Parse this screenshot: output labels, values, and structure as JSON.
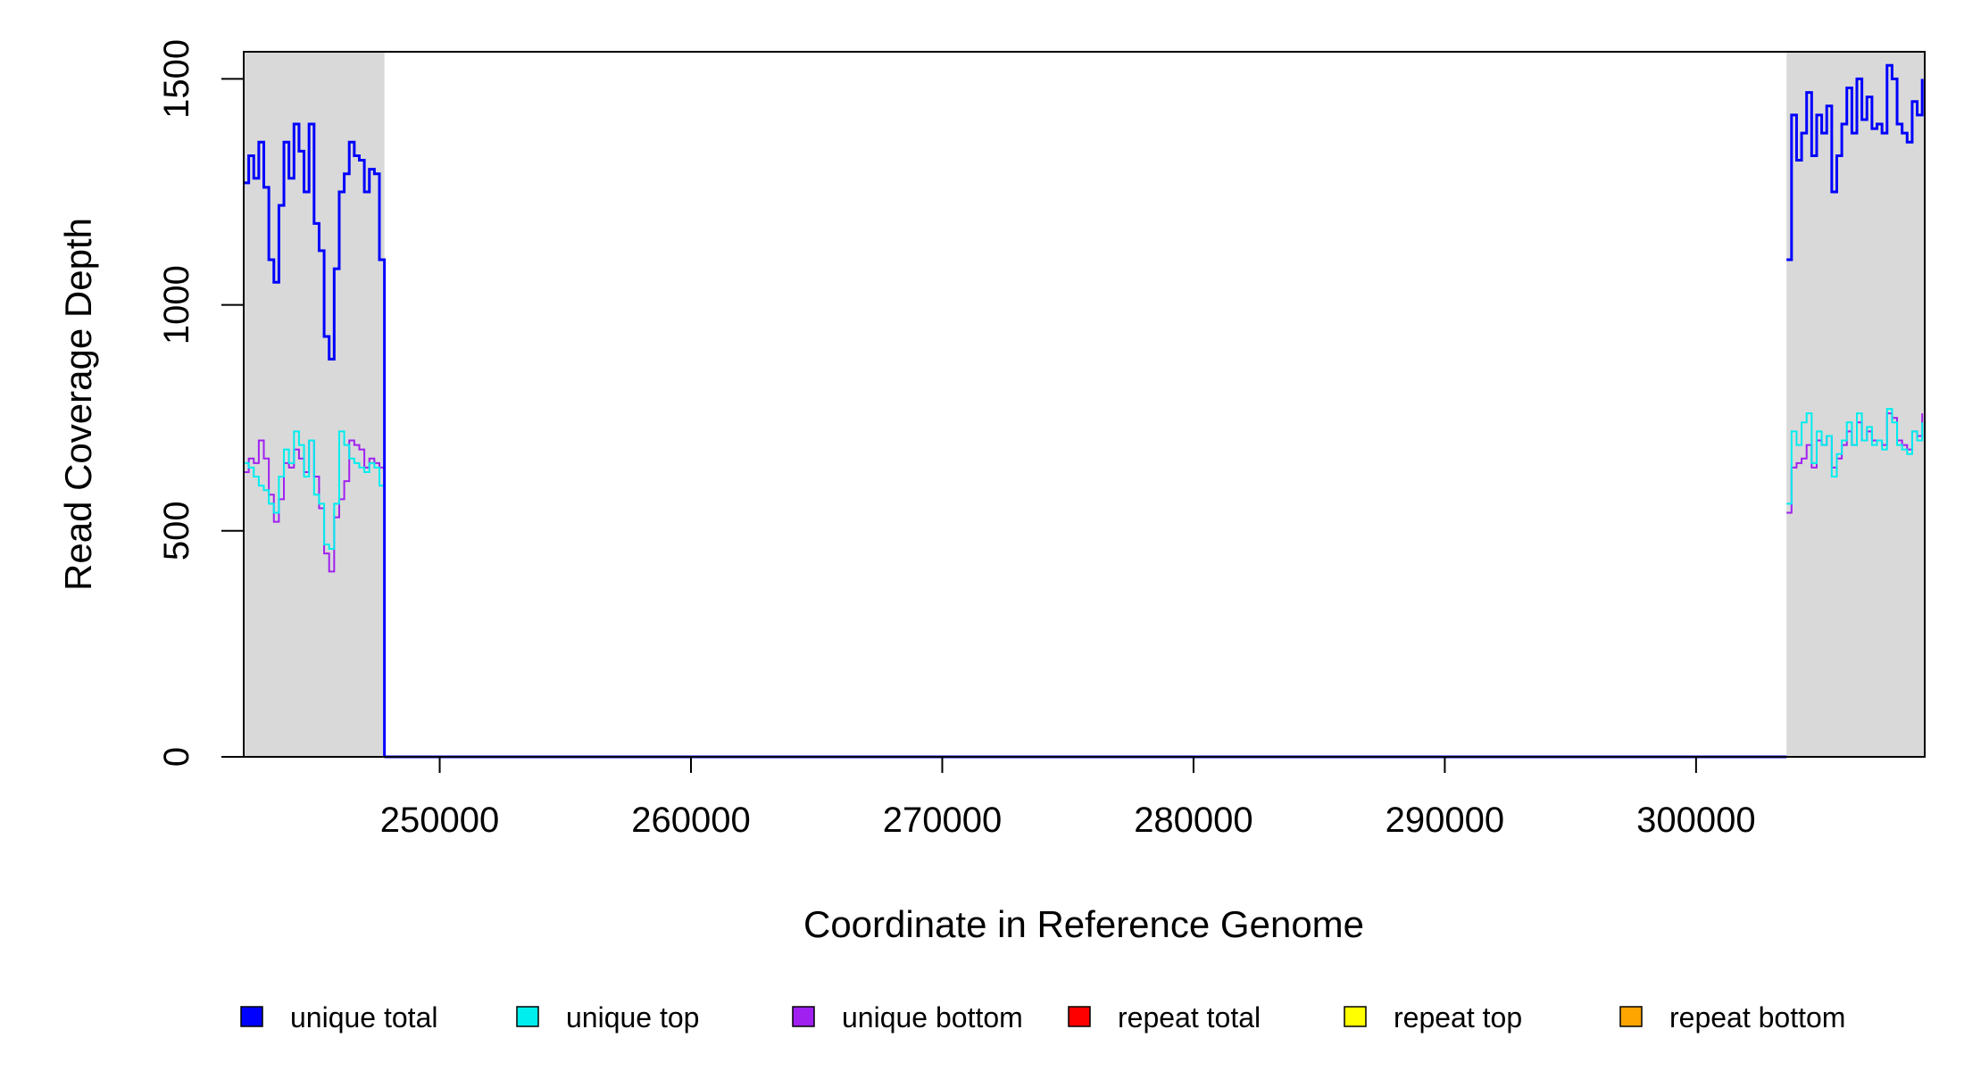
{
  "chart_data": {
    "type": "line",
    "title": "",
    "xlabel": "Coordinate in Reference Genome",
    "ylabel": "Read Coverage Depth",
    "xlim": [
      242200,
      309100
    ],
    "ylim": [
      0,
      1560
    ],
    "x_ticks": [
      250000,
      260000,
      270000,
      280000,
      290000,
      300000
    ],
    "x_tick_labels": [
      "250000",
      "260000",
      "270000",
      "280000",
      "290000",
      "300000"
    ],
    "y_ticks": [
      0,
      500,
      1000,
      1500
    ],
    "y_tick_labels": [
      "0",
      "500",
      "1000",
      "1500"
    ],
    "grid": false,
    "legend_position": "bottom",
    "shaded_regions": [
      {
        "x_start": 242200,
        "x_end": 247800,
        "color": "#d9d9d9"
      },
      {
        "x_start": 303600,
        "x_end": 309100,
        "color": "#d9d9d9"
      }
    ],
    "series": [
      {
        "name": "unique total",
        "color": "#0000ff",
        "segments": [
          {
            "x": [
              242200,
              242400,
              242600,
              242800,
              243000,
              243200,
              243400,
              243600,
              243800,
              244000,
              244200,
              244400,
              244600,
              244800,
              245000,
              245200,
              245400,
              245600,
              245800,
              246000,
              246200,
              246400,
              246600,
              246800,
              247000,
              247200,
              247400,
              247600,
              247800
            ],
            "y": [
              1270,
              1330,
              1280,
              1360,
              1260,
              1100,
              1050,
              1220,
              1360,
              1280,
              1400,
              1340,
              1250,
              1400,
              1180,
              1120,
              930,
              880,
              1080,
              1250,
              1290,
              1360,
              1330,
              1320,
              1250,
              1300,
              1290,
              1100,
              0
            ]
          },
          {
            "x": [
              247800,
              265600,
              303600
            ],
            "y": [
              0,
              0,
              0
            ]
          },
          {
            "x": [
              303600,
              303800,
              304000,
              304200,
              304400,
              304600,
              304800,
              305000,
              305200,
              305400,
              305600,
              305800,
              306000,
              306200,
              306400,
              306600,
              306800,
              307000,
              307200,
              307400,
              307600,
              307800,
              308000,
              308200,
              308400,
              308600,
              308800,
              309000
            ],
            "y": [
              1100,
              1420,
              1320,
              1380,
              1470,
              1330,
              1420,
              1380,
              1440,
              1250,
              1330,
              1400,
              1480,
              1380,
              1500,
              1410,
              1460,
              1390,
              1400,
              1380,
              1530,
              1500,
              1400,
              1380,
              1360,
              1450,
              1420,
              1500
            ]
          }
        ]
      },
      {
        "name": "unique top",
        "color": "#00eeee",
        "segments": [
          {
            "x": [
              242200,
              242400,
              242600,
              242800,
              243000,
              243200,
              243400,
              243600,
              243800,
              244000,
              244200,
              244400,
              244600,
              244800,
              245000,
              245200,
              245400,
              245600,
              245800,
              246000,
              246200,
              246400,
              246600,
              246800,
              247000,
              247200,
              247400,
              247600,
              247800
            ],
            "y": [
              650,
              640,
              620,
              600,
              590,
              560,
              540,
              620,
              680,
              650,
              720,
              690,
              620,
              700,
              580,
              560,
              470,
              460,
              560,
              720,
              690,
              660,
              650,
              640,
              630,
              650,
              640,
              600,
              0
            ]
          },
          {
            "x": [
              247800,
              303600
            ],
            "y": [
              0,
              0
            ]
          },
          {
            "x": [
              303600,
              303800,
              304000,
              304200,
              304400,
              304600,
              304800,
              305000,
              305200,
              305400,
              305600,
              305800,
              306000,
              306200,
              306400,
              306600,
              306800,
              307000,
              307200,
              307400,
              307600,
              307800,
              308000,
              308200,
              308400,
              308600,
              308800,
              309000
            ],
            "y": [
              560,
              720,
              690,
              740,
              760,
              650,
              720,
              690,
              710,
              620,
              670,
              700,
              740,
              690,
              760,
              700,
              730,
              690,
              700,
              680,
              770,
              740,
              690,
              680,
              670,
              720,
              700,
              740
            ]
          }
        ]
      },
      {
        "name": "unique bottom",
        "color": "#a020f0",
        "segments": [
          {
            "x": [
              242200,
              242400,
              242600,
              242800,
              243000,
              243200,
              243400,
              243600,
              243800,
              244000,
              244200,
              244400,
              244600,
              244800,
              245000,
              245200,
              245400,
              245600,
              245800,
              246000,
              246200,
              246400,
              246600,
              246800,
              247000,
              247200,
              247400,
              247600,
              247800
            ],
            "y": [
              630,
              660,
              650,
              700,
              660,
              580,
              520,
              570,
              650,
              640,
              680,
              660,
              630,
              700,
              620,
              550,
              450,
              410,
              530,
              570,
              610,
              700,
              690,
              680,
              640,
              660,
              650,
              640,
              0
            ]
          },
          {
            "x": [
              247800,
              303600
            ],
            "y": [
              0,
              0
            ]
          },
          {
            "x": [
              303600,
              303800,
              304000,
              304200,
              304400,
              304600,
              304800,
              305000,
              305200,
              305400,
              305600,
              305800,
              306000,
              306200,
              306400,
              306600,
              306800,
              307000,
              307200,
              307400,
              307600,
              307800,
              308000,
              308200,
              308400,
              308600,
              308800,
              309000
            ],
            "y": [
              540,
              640,
              650,
              660,
              690,
              640,
              700,
              690,
              710,
              640,
              660,
              690,
              720,
              690,
              740,
              700,
              720,
              700,
              700,
              690,
              760,
              750,
              700,
              690,
              680,
              720,
              710,
              760
            ]
          }
        ]
      },
      {
        "name": "repeat total",
        "color": "#ff0000",
        "segments": [
          {
            "x": [
              242200,
              309100
            ],
            "y": [
              0,
              0
            ]
          }
        ]
      },
      {
        "name": "repeat top",
        "color": "#ffff00",
        "segments": [
          {
            "x": [
              242200,
              309100
            ],
            "y": [
              0,
              0
            ]
          }
        ]
      },
      {
        "name": "repeat bottom",
        "color": "#ffa500",
        "segments": [
          {
            "x": [
              242200,
              309100
            ],
            "y": [
              0,
              0
            ]
          }
        ]
      }
    ]
  }
}
